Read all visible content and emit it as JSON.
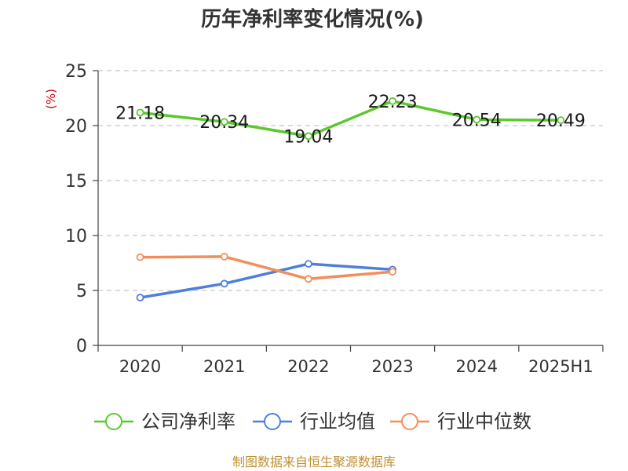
{
  "chart_data": {
    "type": "line",
    "title": "历年净利率变化情况(%)",
    "ylabel": "(%)",
    "xlabel": "",
    "categories": [
      "2020",
      "2021",
      "2022",
      "2023",
      "2024",
      "2025H1"
    ],
    "ylim": [
      0,
      25
    ],
    "yticks": [
      0,
      5,
      10,
      15,
      20,
      25
    ],
    "grid": "horizontal dashed",
    "legend_position": "bottom",
    "series": [
      {
        "name": "公司净利率",
        "color": "#5cc82f",
        "values": [
          21.18,
          20.34,
          19.04,
          22.23,
          20.54,
          20.49
        ],
        "labels": [
          "21.18",
          "20.34",
          "19.04",
          "22.23",
          "20.54",
          "20.49"
        ]
      },
      {
        "name": "行业均值",
        "color": "#4f7fdb",
        "values": [
          4.35,
          5.62,
          7.42,
          6.9,
          null,
          null
        ]
      },
      {
        "name": "行业中位数",
        "color": "#f28e5c",
        "values": [
          8.02,
          8.08,
          6.05,
          6.7,
          null,
          null
        ]
      }
    ]
  },
  "source": "制图数据来自恒生聚源数据库"
}
